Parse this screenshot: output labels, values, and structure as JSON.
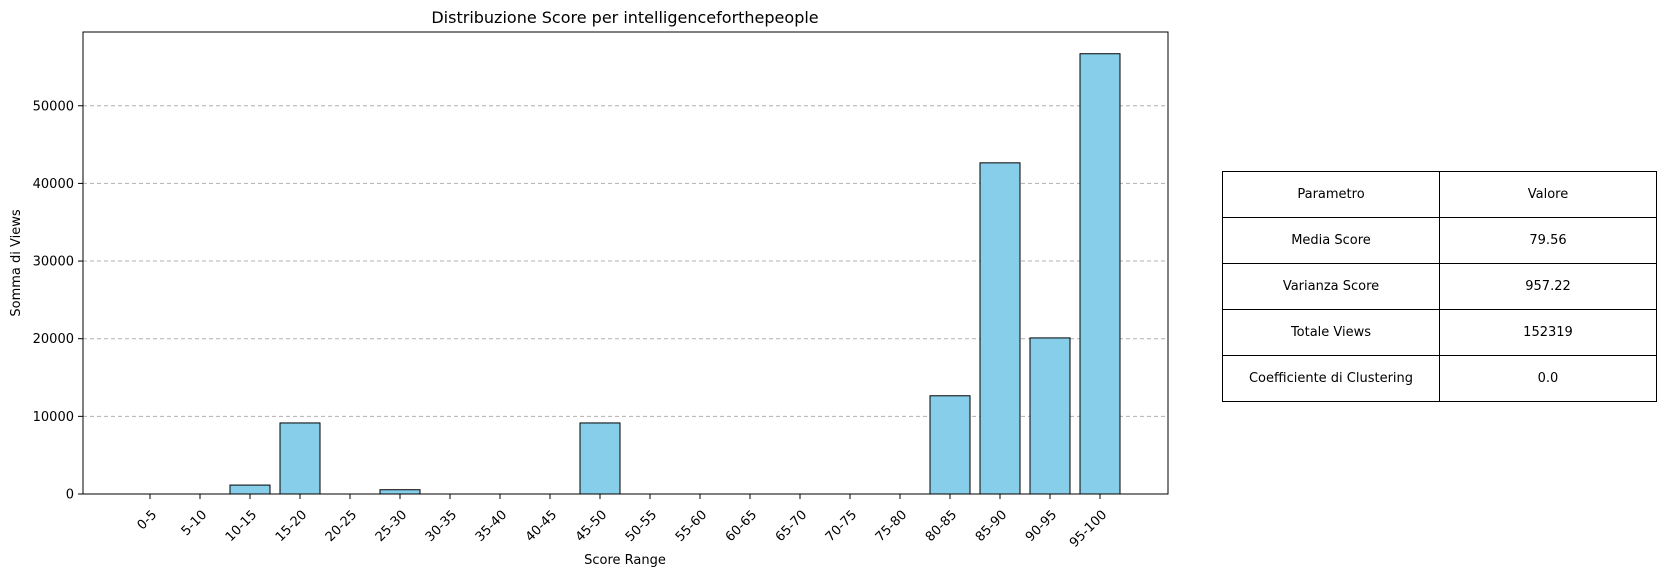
{
  "chart_data": {
    "type": "bar",
    "title": "Distribuzione Score per intelligenceforthepeople",
    "xlabel": "Score Range",
    "ylabel": "Somma di Views",
    "categories": [
      "0-5",
      "5-10",
      "10-15",
      "15-20",
      "20-25",
      "25-30",
      "30-35",
      "35-40",
      "40-45",
      "45-50",
      "50-55",
      "55-60",
      "60-65",
      "65-70",
      "70-75",
      "75-80",
      "80-85",
      "85-90",
      "90-95",
      "95-100"
    ],
    "values": [
      0,
      0,
      1150,
      9150,
      0,
      550,
      0,
      0,
      0,
      9150,
      0,
      0,
      0,
      0,
      0,
      0,
      12650,
      42650,
      20100,
      56700
    ],
    "ylim": [
      0,
      59500
    ],
    "yticks": [
      0,
      10000,
      20000,
      30000,
      40000,
      50000
    ],
    "grid": "y-dashed",
    "bar_color": "#87CEEB",
    "edge_color": "#000000"
  },
  "table": {
    "rows": [
      [
        "Parametro",
        "Valore"
      ],
      [
        "Media Score",
        "79.56"
      ],
      [
        "Varianza Score",
        "957.22"
      ],
      [
        "Totale Views",
        "152319"
      ],
      [
        "Coefficiente di Clustering",
        "0.0"
      ]
    ]
  }
}
